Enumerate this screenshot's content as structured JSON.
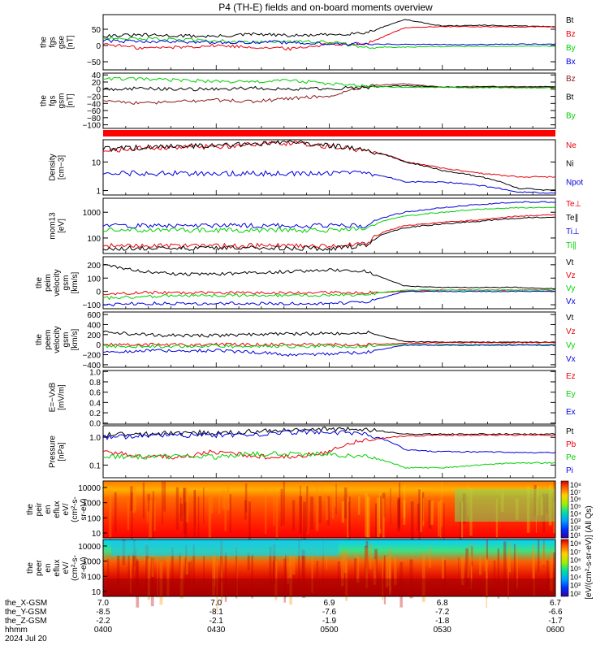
{
  "title": "P4 (TH-E) fields and on-board moments overview",
  "colors": {
    "black": "#000000",
    "red": "#e8000b",
    "green": "#00d000",
    "blue": "#0000e0",
    "darkred": "#8b1a1a",
    "bar": "#ff0000"
  },
  "x_axis": {
    "time_ticks": [
      "0400",
      "0430",
      "0500",
      "0530",
      "0600"
    ],
    "x_gsm": [
      "-8.5",
      "-8.1",
      "-7.6",
      "-7.2",
      "-6.6"
    ],
    "y_gsm": [
      "-2.2",
      "-2.1",
      "-1.9",
      "-1.8",
      "-1.7"
    ],
    "z_gsm": [
      "7.0",
      "7.0",
      "6.9",
      "6.8",
      "6.7"
    ],
    "row_labels": [
      "the_X-GSM",
      "the_Y-GSM",
      "the_Z-GSM",
      "hhmm"
    ],
    "date": "2024 Jul 20"
  },
  "chart_data": [
    {
      "id": "fgs-gse",
      "type": "line",
      "ylabel": [
        "the",
        "fgs",
        "gse",
        "[nT]"
      ],
      "ylim": [
        -75,
        95
      ],
      "yticks": [
        {
          "v": 50,
          "t": "50"
        },
        {
          "v": 0,
          "t": "0"
        },
        {
          "v": -50,
          "t": "−50"
        }
      ],
      "series": [
        {
          "name": "Bt",
          "color": "black",
          "values": [
            30,
            32,
            30,
            28,
            35,
            30,
            33,
            40,
            80,
            60,
            62,
            60,
            58
          ]
        },
        {
          "name": "Bz",
          "color": "red",
          "values": [
            5,
            -8,
            -5,
            0,
            -5,
            -10,
            5,
            5,
            55,
            58,
            58,
            57,
            58
          ]
        },
        {
          "name": "By",
          "color": "green",
          "values": [
            25,
            20,
            18,
            15,
            10,
            12,
            10,
            -5,
            -5,
            -3,
            -3,
            -2,
            -2
          ]
        },
        {
          "name": "Bx",
          "color": "blue",
          "values": [
            15,
            12,
            12,
            10,
            10,
            10,
            5,
            5,
            3,
            3,
            3,
            4,
            4
          ]
        }
      ]
    },
    {
      "id": "fgs-gsm",
      "type": "line",
      "ylabel": [
        "the",
        "fgs",
        "gsm",
        "[nT]"
      ],
      "ylim": [
        -110,
        45
      ],
      "yticks": [
        {
          "v": 40,
          "t": "40"
        },
        {
          "v": 20,
          "t": "20"
        },
        {
          "v": 0,
          "t": "0"
        },
        {
          "v": -20,
          "t": "−20"
        },
        {
          "v": -40,
          "t": "−40"
        },
        {
          "v": -60,
          "t": "−60"
        },
        {
          "v": -80,
          "t": "−80"
        },
        {
          "v": -100,
          "t": "−100"
        }
      ],
      "series": [
        {
          "name": "Bz",
          "color": "darkred",
          "values": [
            -30,
            -40,
            -35,
            -30,
            -35,
            -25,
            -20,
            10,
            15,
            5,
            8,
            7,
            7
          ]
        },
        {
          "name": "Bt",
          "color": "black",
          "values": [
            0,
            2,
            0,
            0,
            3,
            0,
            2,
            5,
            10,
            6,
            6,
            6,
            6
          ]
        },
        {
          "name": "By",
          "color": "green",
          "values": [
            30,
            28,
            25,
            22,
            20,
            25,
            15,
            8,
            5,
            5,
            4,
            4,
            4
          ]
        }
      ]
    },
    {
      "id": "density",
      "type": "line",
      "ylabel": [
        "Density",
        "[cm−3]"
      ],
      "yscale": "log",
      "ylim": [
        0.7,
        60
      ],
      "yticks": [
        {
          "v": 10,
          "t": "10"
        },
        {
          "v": 1,
          "t": "1"
        }
      ],
      "series": [
        {
          "name": "Ne",
          "color": "red",
          "values": [
            25,
            30,
            32,
            35,
            40,
            45,
            35,
            25,
            10,
            6,
            4,
            3,
            3
          ]
        },
        {
          "name": "Ni",
          "color": "black",
          "values": [
            28,
            32,
            35,
            38,
            42,
            48,
            38,
            25,
            10,
            5,
            3,
            1.2,
            1
          ]
        },
        {
          "name": "Npot",
          "color": "blue",
          "values": [
            4,
            4,
            4,
            4,
            4,
            4,
            4,
            4,
            2,
            2,
            1.5,
            0.9,
            0.8
          ]
        }
      ]
    },
    {
      "id": "temperature",
      "type": "line",
      "ylabel": [
        "mom13",
        "[eV]"
      ],
      "yscale": "log",
      "ylim": [
        25,
        3500
      ],
      "yticks": [
        {
          "v": 1000,
          "t": "1000"
        },
        {
          "v": 100,
          "t": "100"
        }
      ],
      "series": [
        {
          "name": "Te⊥",
          "color": "red",
          "values": [
            50,
            50,
            50,
            50,
            50,
            50,
            50,
            60,
            300,
            400,
            500,
            700,
            800
          ]
        },
        {
          "name": "Te∥",
          "color": "black",
          "values": [
            40,
            40,
            40,
            40,
            40,
            40,
            40,
            50,
            250,
            350,
            450,
            600,
            650
          ]
        },
        {
          "name": "Ti⊥",
          "color": "blue",
          "values": [
            300,
            300,
            300,
            300,
            300,
            300,
            300,
            300,
            1000,
            1500,
            2000,
            2500,
            2500
          ]
        },
        {
          "name": "Ti∥",
          "color": "green",
          "values": [
            200,
            200,
            200,
            200,
            200,
            200,
            200,
            250,
            700,
            1000,
            1300,
            1500,
            1500
          ]
        }
      ]
    },
    {
      "id": "ion-velocity",
      "type": "line",
      "ylabel": [
        "the",
        "peim",
        "velocity",
        "gsm",
        "[km/s]"
      ],
      "ylim": [
        -130,
        260
      ],
      "yticks": [
        {
          "v": 200,
          "t": "200"
        },
        {
          "v": 100,
          "t": "100"
        },
        {
          "v": 0,
          "t": "0"
        },
        {
          "v": -100,
          "t": "−100"
        }
      ],
      "series": [
        {
          "name": "Vt",
          "color": "black",
          "values": [
            200,
            150,
            130,
            130,
            140,
            150,
            160,
            150,
            40,
            30,
            30,
            30,
            20
          ]
        },
        {
          "name": "Vz",
          "color": "red",
          "values": [
            -20,
            -10,
            -10,
            -10,
            -10,
            -10,
            -10,
            -10,
            0,
            10,
            10,
            10,
            10
          ]
        },
        {
          "name": "Vy",
          "color": "green",
          "values": [
            -50,
            -40,
            -30,
            -30,
            -30,
            -30,
            -30,
            -20,
            10,
            10,
            10,
            10,
            10
          ]
        },
        {
          "name": "Vx",
          "color": "blue",
          "values": [
            -100,
            -90,
            -90,
            -90,
            -90,
            -90,
            -90,
            -80,
            0,
            0,
            0,
            0,
            0
          ]
        }
      ]
    },
    {
      "id": "electron-velocity",
      "type": "line",
      "ylabel": [
        "the",
        "peem",
        "velocity",
        "gsm",
        "[km/s]"
      ],
      "ylim": [
        -450,
        650
      ],
      "yticks": [
        {
          "v": 600,
          "t": "600"
        },
        {
          "v": 400,
          "t": "400"
        },
        {
          "v": 200,
          "t": "200"
        },
        {
          "v": 0,
          "t": "0"
        },
        {
          "v": -200,
          "t": "−200"
        },
        {
          "v": -400,
          "t": "−400"
        }
      ],
      "series": [
        {
          "name": "Vt",
          "color": "black",
          "values": [
            250,
            200,
            180,
            180,
            200,
            220,
            220,
            250,
            60,
            50,
            50,
            50,
            50
          ]
        },
        {
          "name": "Vz",
          "color": "red",
          "values": [
            0,
            0,
            0,
            0,
            0,
            0,
            0,
            0,
            30,
            40,
            40,
            40,
            40
          ]
        },
        {
          "name": "Vy",
          "color": "green",
          "values": [
            -30,
            -30,
            -30,
            -30,
            -30,
            -30,
            -30,
            -30,
            0,
            0,
            0,
            0,
            0
          ]
        },
        {
          "name": "Vx",
          "color": "blue",
          "values": [
            -150,
            -120,
            -120,
            -120,
            -150,
            -200,
            -180,
            -150,
            -10,
            -10,
            -10,
            -10,
            -10
          ]
        }
      ]
    },
    {
      "id": "efield",
      "type": "line",
      "ylabel": [
        "E=−VxB",
        "[mV/m]"
      ],
      "ylim": [
        -0.02,
        1.02
      ],
      "yticks": [
        {
          "v": 1.0,
          "t": "1.0"
        },
        {
          "v": 0.8,
          "t": "0.8"
        },
        {
          "v": 0.6,
          "t": "0.6"
        },
        {
          "v": 0.4,
          "t": "0.4"
        },
        {
          "v": 0.2,
          "t": "0.2"
        },
        {
          "v": 0.0,
          "t": "0.0"
        }
      ],
      "series": [
        {
          "name": "Ez",
          "color": "red",
          "values": []
        },
        {
          "name": "Ey",
          "color": "green",
          "values": []
        },
        {
          "name": "Ex",
          "color": "blue",
          "values": []
        }
      ]
    },
    {
      "id": "pressure",
      "type": "line",
      "ylabel": [
        "Pressure",
        "[nPa]"
      ],
      "yscale": "log",
      "ylim": [
        0.035,
        2.6
      ],
      "yticks": [
        {
          "v": 1.0,
          "t": "1.0"
        },
        {
          "v": 0.1,
          "t": "0.1"
        }
      ],
      "series": [
        {
          "name": "Pt",
          "color": "black",
          "values": [
            1.2,
            1.3,
            1.4,
            1.5,
            1.6,
            1.8,
            2.0,
            1.9,
            1.3,
            1.3,
            1.3,
            1.3,
            1.3
          ]
        },
        {
          "name": "Pb",
          "color": "red",
          "values": [
            0.3,
            0.2,
            0.2,
            0.3,
            0.2,
            0.2,
            0.3,
            0.8,
            1.1,
            1.2,
            1.2,
            1.2,
            1.2
          ]
        },
        {
          "name": "Pe",
          "color": "green",
          "values": [
            0.2,
            0.2,
            0.2,
            0.2,
            0.25,
            0.25,
            0.25,
            0.2,
            0.08,
            0.08,
            0.1,
            0.12,
            0.12
          ]
        },
        {
          "name": "Pi",
          "color": "blue",
          "values": [
            1.0,
            1.1,
            1.2,
            1.2,
            1.3,
            1.5,
            1.6,
            1.2,
            0.35,
            0.3,
            0.3,
            0.28,
            0.28
          ]
        }
      ]
    },
    {
      "id": "ion-spectrogram",
      "type": "heatmap",
      "ylabel": [
        "the",
        "peir",
        "en",
        "eflux",
        "eV/",
        "(cm²-s-",
        "sr-eV)"
      ],
      "yticks": [
        "10000",
        "1000",
        "100",
        "10"
      ],
      "colorbar_ticks": [
        "10⁸",
        "10⁷",
        "10⁶",
        "10⁵",
        "10⁴",
        "10³",
        "10²",
        "10¹"
      ]
    },
    {
      "id": "electron-spectrogram",
      "type": "heatmap",
      "ylabel": [
        "the",
        "peer",
        "en",
        "eflux",
        "eV/",
        "(cm²-s-",
        "sr-eV)"
      ],
      "yticks": [
        "10000",
        "1000",
        "100",
        "10"
      ],
      "colorbar_ticks": [
        "10⁸",
        "10⁷",
        "10⁶",
        "10⁵",
        "10⁴",
        "10³",
        "10²"
      ]
    }
  ],
  "colorbar_label": "[eV/(cm²-s-sr-eV)] (All Qs)"
}
